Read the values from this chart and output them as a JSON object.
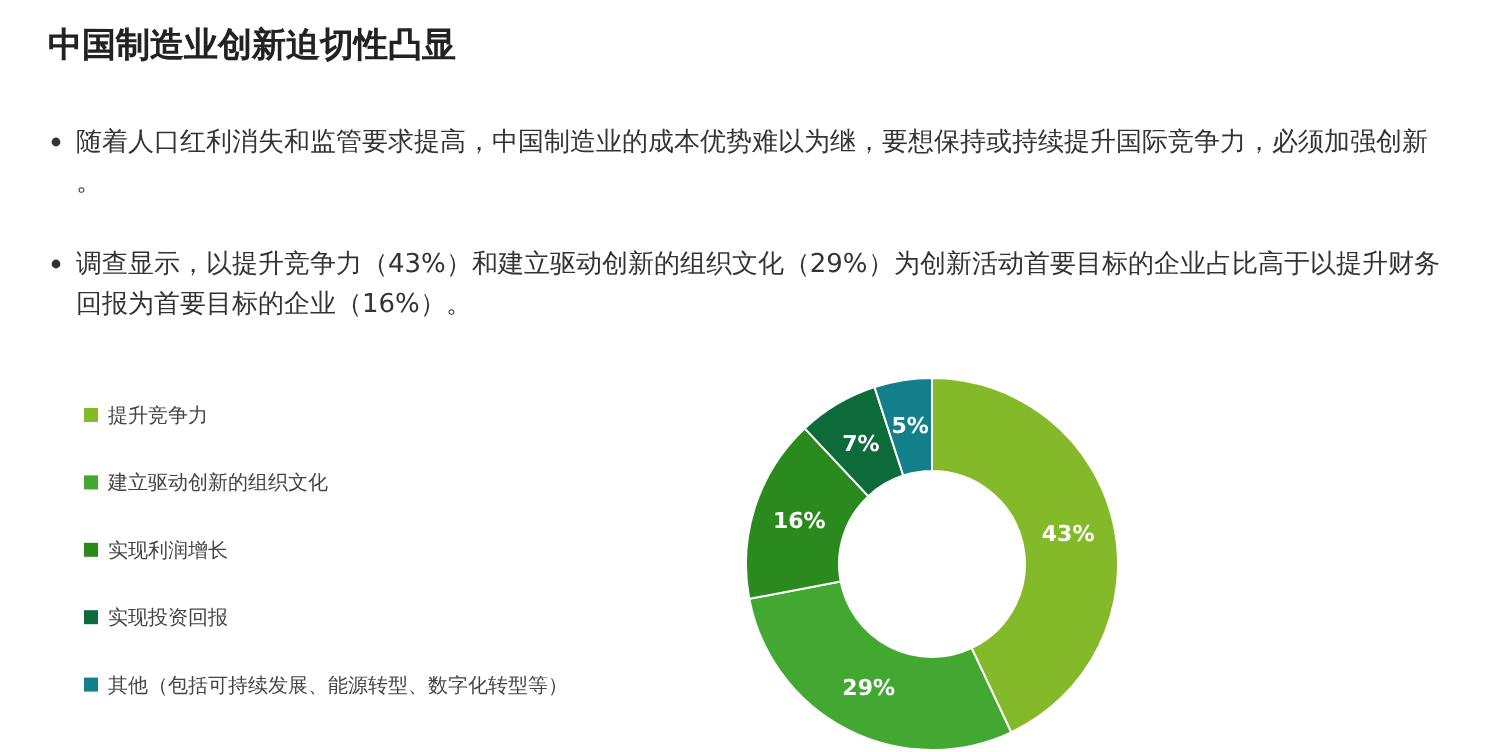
{
  "chart_data": {
    "type": "donut",
    "title": "中国制造业创新迫切性凸显",
    "annotations": [
      "随着人口红利消失和监管要求提高，中国制造业的成本优势难以为继，要想保持或持续提升国际竞争力，必须加强创新。",
      "调查显示，以提升竞争力（43%）和建立驱动创新的组织文化（29%）为创新活动首要目标的企业占比高于以提升财务回报为首要目标的企业（16%）。"
    ],
    "categories": [
      "提升竞争力",
      "建立驱动创新的组织文化",
      "实现利润增长",
      "实现投资回报",
      "其他（包括可持续发展、能源转型、数字化转型等）"
    ],
    "values": [
      43,
      29,
      16,
      7,
      5
    ],
    "colors": [
      "#84b92a",
      "#43a832",
      "#2a8a1e",
      "#0d6b3a",
      "#137f8a"
    ],
    "value_labels": [
      "43%",
      "29%",
      "16%",
      "7%",
      "5%"
    ],
    "legend": "left"
  }
}
